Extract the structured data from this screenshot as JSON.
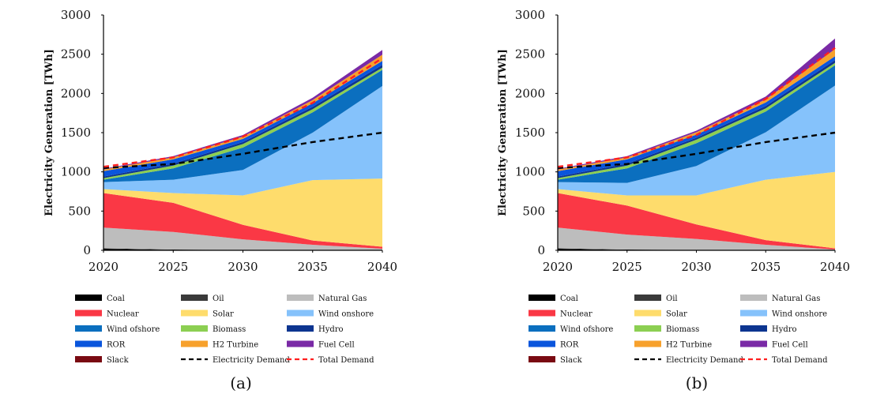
{
  "legend": [
    {
      "key": "coal",
      "label": "Coal",
      "type": "swatch",
      "color": "#000000"
    },
    {
      "key": "oil",
      "label": "Oil",
      "type": "swatch",
      "color": "#3a3a3a"
    },
    {
      "key": "gas",
      "label": "Natural Gas",
      "type": "swatch",
      "color": "#bdbdbd"
    },
    {
      "key": "nuclear",
      "label": "Nuclear",
      "type": "swatch",
      "color": "#fa3845"
    },
    {
      "key": "solar",
      "label": "Solar",
      "type": "swatch",
      "color": "#fedc6c"
    },
    {
      "key": "wind_on",
      "label": "Wind onshore",
      "type": "swatch",
      "color": "#85c2fb"
    },
    {
      "key": "wind_off",
      "label": "Wind ofshore",
      "type": "swatch",
      "color": "#0b6fbf"
    },
    {
      "key": "biomass",
      "label": "Biomass",
      "type": "swatch",
      "color": "#8ccf52"
    },
    {
      "key": "hydro",
      "label": "Hydro",
      "type": "swatch",
      "color": "#0d3590"
    },
    {
      "key": "ror",
      "label": "ROR",
      "type": "swatch",
      "color": "#0a55dc"
    },
    {
      "key": "h2",
      "label": "H2 Turbine",
      "type": "swatch",
      "color": "#f7a12c"
    },
    {
      "key": "fuelcell",
      "label": "Fuel Cell",
      "type": "swatch",
      "color": "#7a2aa6"
    },
    {
      "key": "slack",
      "label": "Slack",
      "type": "swatch",
      "color": "#7a0a12"
    },
    {
      "key": "elec_demand",
      "label": "Electricity Demand",
      "type": "line",
      "color": "#000000"
    },
    {
      "key": "total_demand",
      "label": "Total Demand",
      "type": "line",
      "color": "#ff1f1f"
    }
  ],
  "chart_data": [
    {
      "type": "area",
      "panel_label": "(a)",
      "ylabel": "Electricity Generation [TWh]",
      "xlabel": "",
      "x": [
        2020,
        2025,
        2030,
        2035,
        2040
      ],
      "xticks": [
        "2020",
        "2025",
        "2030",
        "2035",
        "2040"
      ],
      "yticks": [
        "0",
        "500",
        "1000",
        "1500",
        "2000",
        "2500",
        "3000"
      ],
      "xlim": [
        2020,
        2040
      ],
      "ylim": [
        0,
        3000
      ],
      "stacked": true,
      "series": [
        {
          "key": "coal",
          "name": "Coal",
          "values": [
            20,
            5,
            0,
            0,
            0
          ]
        },
        {
          "key": "oil",
          "name": "Oil",
          "values": [
            5,
            5,
            5,
            0,
            0
          ]
        },
        {
          "key": "gas",
          "name": "Natural Gas",
          "values": [
            265,
            225,
            135,
            70,
            20
          ]
        },
        {
          "key": "nuclear",
          "name": "Nuclear",
          "values": [
            440,
            370,
            185,
            55,
            25
          ]
        },
        {
          "key": "solar",
          "name": "Solar",
          "values": [
            50,
            125,
            375,
            770,
            870
          ]
        },
        {
          "key": "wind_on",
          "name": "Wind onshore",
          "values": [
            90,
            170,
            325,
            605,
            1180
          ]
        },
        {
          "key": "wind_off",
          "name": "Wind ofshore",
          "values": [
            30,
            145,
            285,
            260,
            205
          ]
        },
        {
          "key": "biomass",
          "name": "Biomass",
          "values": [
            20,
            35,
            45,
            40,
            30
          ]
        },
        {
          "key": "hydro",
          "name": "Hydro",
          "values": [
            20,
            25,
            25,
            30,
            35
          ]
        },
        {
          "key": "ror",
          "name": "ROR",
          "values": [
            70,
            55,
            40,
            45,
            50
          ]
        },
        {
          "key": "h2",
          "name": "H2 Turbine",
          "values": [
            20,
            25,
            30,
            40,
            80
          ]
        },
        {
          "key": "fuelcell",
          "name": "Fuel Cell",
          "values": [
            10,
            15,
            20,
            30,
            60
          ]
        },
        {
          "key": "slack",
          "name": "Slack",
          "values": [
            0,
            0,
            0,
            0,
            0
          ]
        }
      ],
      "lines": [
        {
          "key": "elec_demand",
          "name": "Electricity Demand",
          "values": [
            1050,
            1100,
            1230,
            1380,
            1500
          ]
        },
        {
          "key": "total_demand",
          "name": "Total Demand",
          "values": [
            1065,
            1185,
            1450,
            1880,
            2450
          ]
        }
      ]
    },
    {
      "type": "area",
      "panel_label": "(b)",
      "ylabel": "Electricity Generation [TWh]",
      "xlabel": "",
      "x": [
        2020,
        2025,
        2030,
        2035,
        2040
      ],
      "xticks": [
        "2020",
        "2025",
        "2030",
        "2035",
        "2040"
      ],
      "yticks": [
        "0",
        "500",
        "1000",
        "1500",
        "2000",
        "2500",
        "3000"
      ],
      "xlim": [
        2020,
        2040
      ],
      "ylim": [
        0,
        3000
      ],
      "stacked": true,
      "series": [
        {
          "key": "coal",
          "name": "Coal",
          "values": [
            20,
            5,
            0,
            0,
            0
          ]
        },
        {
          "key": "oil",
          "name": "Oil",
          "values": [
            5,
            5,
            5,
            0,
            0
          ]
        },
        {
          "key": "gas",
          "name": "Natural Gas",
          "values": [
            265,
            190,
            140,
            70,
            10
          ]
        },
        {
          "key": "nuclear",
          "name": "Nuclear",
          "values": [
            440,
            370,
            185,
            60,
            15
          ]
        },
        {
          "key": "solar",
          "name": "Solar",
          "values": [
            50,
            130,
            370,
            770,
            975
          ]
        },
        {
          "key": "wind_on",
          "name": "Wind onshore",
          "values": [
            90,
            160,
            375,
            605,
            1100
          ]
        },
        {
          "key": "wind_off",
          "name": "Wind ofshore",
          "values": [
            30,
            185,
            290,
            265,
            260
          ]
        },
        {
          "key": "biomass",
          "name": "Biomass",
          "values": [
            20,
            35,
            45,
            40,
            30
          ]
        },
        {
          "key": "hydro",
          "name": "Hydro",
          "values": [
            20,
            25,
            25,
            30,
            35
          ]
        },
        {
          "key": "ror",
          "name": "ROR",
          "values": [
            70,
            55,
            40,
            45,
            50
          ]
        },
        {
          "key": "h2",
          "name": "H2 Turbine",
          "values": [
            20,
            25,
            30,
            40,
            90
          ]
        },
        {
          "key": "fuelcell",
          "name": "Fuel Cell",
          "values": [
            10,
            15,
            20,
            35,
            135
          ]
        },
        {
          "key": "slack",
          "name": "Slack",
          "values": [
            0,
            0,
            0,
            0,
            0
          ]
        }
      ],
      "lines": [
        {
          "key": "elec_demand",
          "name": "Electricity Demand",
          "values": [
            1050,
            1100,
            1230,
            1380,
            1500
          ]
        },
        {
          "key": "total_demand",
          "name": "Total Demand",
          "values": [
            1065,
            1185,
            1470,
            1930,
            2580
          ]
        }
      ]
    }
  ]
}
